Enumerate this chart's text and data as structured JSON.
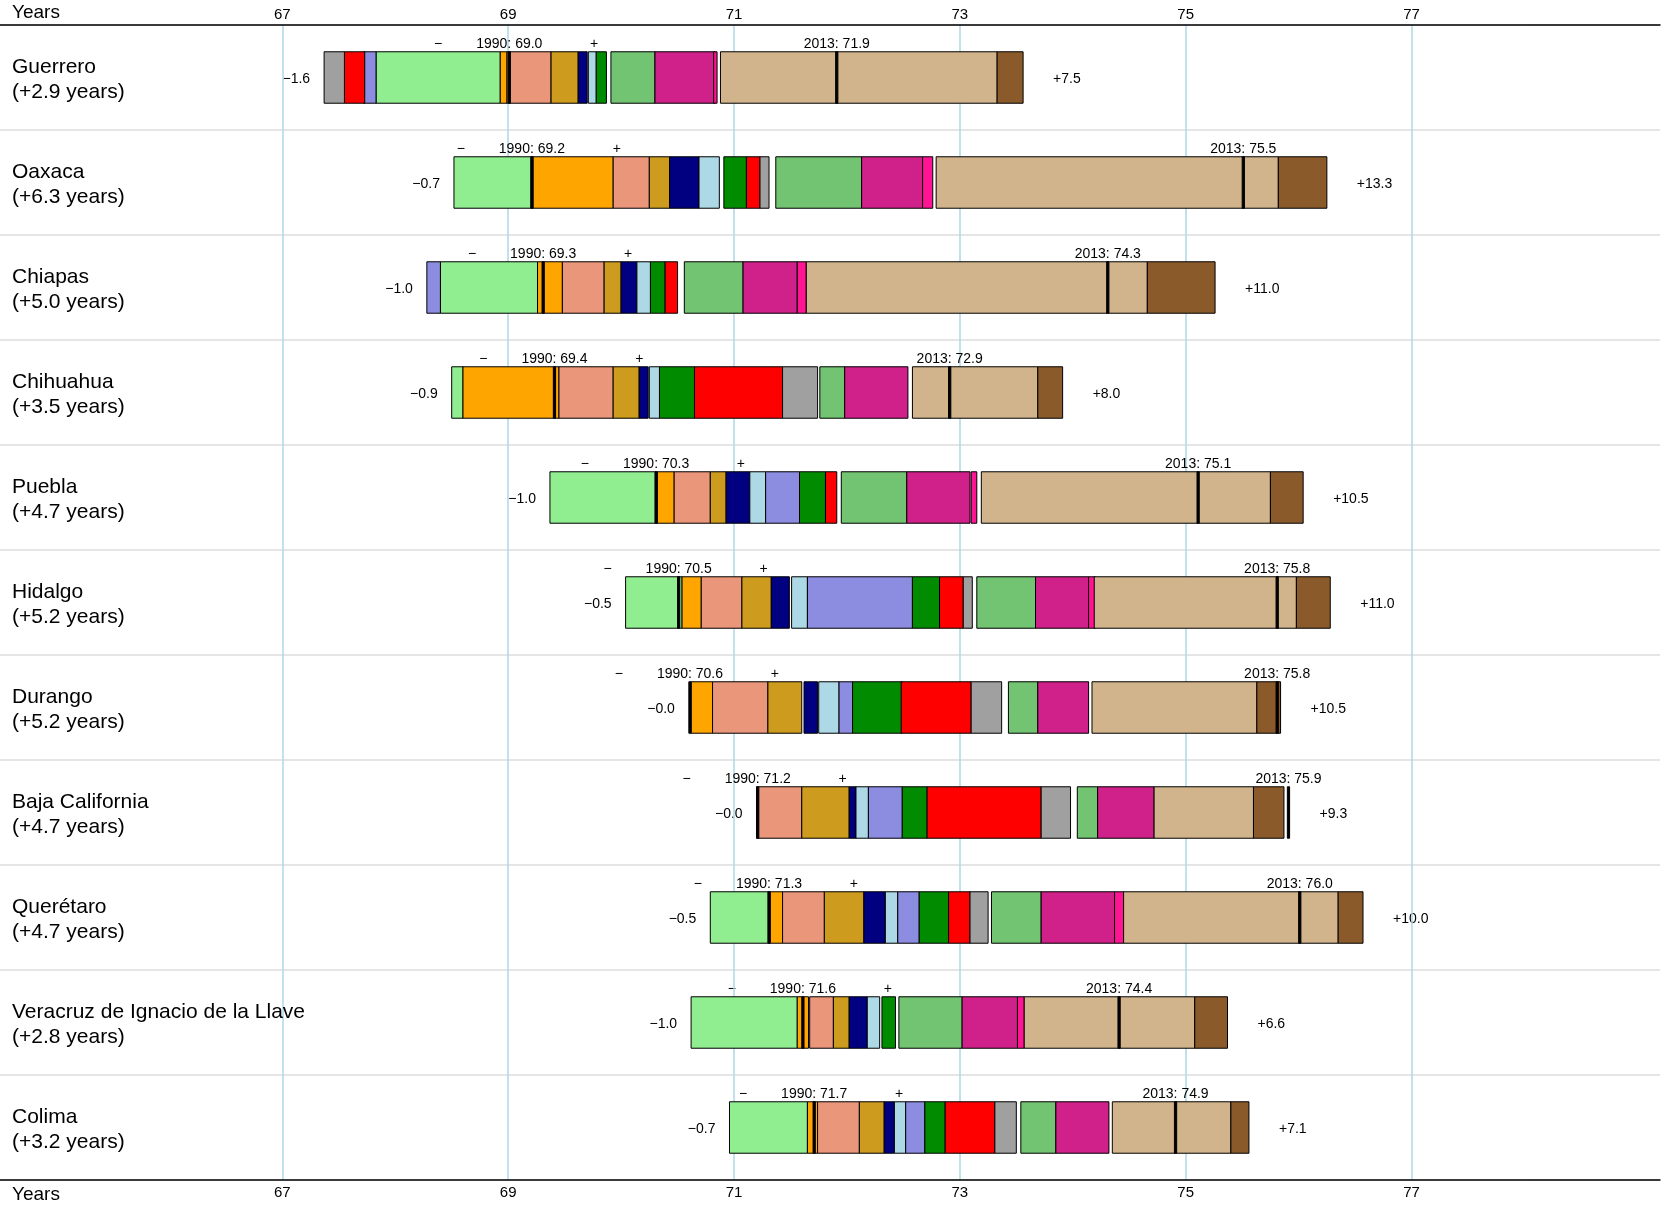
{
  "chart_data": {
    "type": "bar",
    "orientation": "horizontal",
    "xlabel": "Years",
    "x2label": "Years",
    "xlim": [
      64.5,
      79.2
    ],
    "xticks": [
      67,
      69,
      71,
      73,
      75,
      77
    ],
    "x2lim": [
      64.5,
      79.2
    ],
    "x2ticks": [
      67,
      69,
      71,
      73,
      75,
      77
    ],
    "grid": true,
    "legend": false,
    "categories": [
      "Guerrero\n(+2.9 years)",
      "Oaxaca\n(+6.3 years)",
      "Chiapas\n(+5.0 years)",
      "Chihuahua\n(+3.5 years)",
      "Puebla\n(+4.7 years)",
      "Hidalgo\n(+5.2 years)",
      "Durango\n(+5.2 years)",
      "Baja California\n(+4.7 years)",
      "Querétaro\n(+4.7 years)",
      "Veracruz de Ignacio de la Llave\n(+2.8 years)",
      "Colima\n(+3.2 years)"
    ],
    "series": [
      {
        "color": "#90ee90",
        "base": [
          67.83,
          68.52,
          68.4,
          68.5,
          69.37,
          70.04,
          null,
          null,
          70.79,
          70.62,
          70.96
        ],
        "values": [
          1.1,
          0.7,
          0.86,
          0.1,
          0.95,
          0.5,
          null,
          null,
          0.53,
          0.94,
          0.69
        ]
      },
      {
        "color": "#ffa500",
        "base": [
          68.93,
          69.22,
          69.26,
          68.6,
          70.32,
          70.54,
          70.62,
          null,
          71.32,
          71.56,
          71.65
        ],
        "values": [
          0.06,
          0.71,
          0.22,
          0.85,
          0.15,
          0.17,
          0.19,
          null,
          0.11,
          0.1,
          0.09
        ]
      },
      {
        "color": "#e9967a",
        "base": [
          68.99,
          69.93,
          69.48,
          69.45,
          70.47,
          70.71,
          70.81,
          71.2,
          71.43,
          71.67,
          71.74
        ],
        "values": [
          0.39,
          0.32,
          0.37,
          0.48,
          0.32,
          0.36,
          0.49,
          0.4,
          0.37,
          0.21,
          0.37
        ]
      },
      {
        "color": "#cd9b1d",
        "base": [
          69.38,
          70.25,
          69.85,
          69.93,
          70.79,
          71.07,
          71.3,
          71.6,
          71.8,
          71.88,
          72.11
        ],
        "values": [
          0.24,
          0.18,
          0.15,
          0.23,
          0.14,
          0.26,
          0.3,
          0.42,
          0.35,
          0.14,
          0.22
        ]
      },
      {
        "color": "#000080",
        "base": [
          69.62,
          70.43,
          70.0,
          70.16,
          70.93,
          71.33,
          71.62,
          72.02,
          72.15,
          72.02,
          72.33
        ],
        "values": [
          0.08,
          0.26,
          0.14,
          0.08,
          0.21,
          0.16,
          0.12,
          0.06,
          0.19,
          0.16,
          0.09
        ]
      },
      {
        "color": "#add8e6",
        "base": [
          69.71,
          70.69,
          70.14,
          70.25,
          71.14,
          71.51,
          71.75,
          72.08,
          72.34,
          72.18,
          72.42
        ],
        "values": [
          0.07,
          0.18,
          0.12,
          0.09,
          0.14,
          0.14,
          0.18,
          0.11,
          0.11,
          0.11,
          0.1
        ]
      },
      {
        "color": "#8c8ce0",
        "base": [
          67.72,
          null,
          68.28,
          null,
          71.28,
          71.65,
          71.93,
          72.19,
          72.45,
          null,
          72.52
        ],
        "values": [
          0.11,
          null,
          0.12,
          null,
          0.3,
          0.93,
          0.12,
          0.3,
          0.19,
          null,
          0.17
        ]
      },
      {
        "color": "#008b00",
        "base": [
          69.78,
          70.91,
          70.26,
          70.34,
          71.58,
          72.58,
          72.05,
          72.49,
          72.64,
          72.31,
          72.69
        ],
        "values": [
          0.09,
          0.2,
          0.13,
          0.31,
          0.23,
          0.24,
          0.44,
          0.22,
          0.26,
          0.12,
          0.18
        ]
      },
      {
        "color": "#ff0000",
        "base": [
          67.55,
          71.11,
          70.39,
          70.65,
          71.81,
          72.82,
          72.48,
          72.71,
          72.9,
          null,
          72.87
        ],
        "values": [
          0.18,
          0.12,
          0.11,
          0.78,
          0.1,
          0.21,
          0.62,
          1.01,
          0.19,
          null,
          0.44
        ]
      },
      {
        "color": "#a0a0a0",
        "base": [
          67.37,
          71.23,
          null,
          71.43,
          null,
          73.03,
          73.1,
          73.72,
          73.09,
          null,
          73.31
        ],
        "values": [
          0.18,
          0.08,
          null,
          0.31,
          null,
          0.08,
          0.27,
          0.26,
          0.16,
          null,
          0.19
        ]
      },
      {
        "color": "#72c472",
        "base": [
          69.91,
          71.37,
          70.56,
          71.76,
          71.95,
          73.15,
          73.43,
          74.04,
          73.28,
          72.46,
          73.54
        ],
        "values": [
          0.39,
          0.76,
          0.52,
          0.22,
          0.58,
          0.52,
          0.26,
          0.18,
          0.44,
          0.56,
          0.31
        ]
      },
      {
        "color": "#d0208a",
        "base": [
          70.3,
          72.13,
          71.08,
          71.98,
          72.53,
          73.67,
          73.69,
          74.22,
          73.72,
          73.02,
          73.85
        ],
        "values": [
          0.53,
          0.54,
          0.48,
          0.56,
          0.56,
          0.47,
          0.45,
          0.5,
          0.65,
          0.49,
          0.47
        ]
      },
      {
        "color": "#ff1493",
        "base": [
          70.82,
          72.67,
          71.56,
          null,
          73.1,
          74.14,
          null,
          null,
          74.37,
          73.51,
          null
        ],
        "values": [
          0.03,
          0.09,
          0.08,
          null,
          0.05,
          0.06,
          null,
          null,
          0.08,
          0.06,
          null
        ]
      },
      {
        "color": "#d2b48c",
        "base": [
          70.88,
          72.79,
          71.64,
          72.58,
          73.19,
          74.19,
          74.17,
          74.72,
          74.45,
          73.57,
          74.35
        ],
        "values": [
          2.45,
          3.03,
          3.02,
          1.11,
          2.56,
          1.79,
          1.46,
          0.88,
          1.9,
          1.51,
          1.05
        ]
      },
      {
        "color": "#8b5a2b",
        "base": [
          73.33,
          75.82,
          74.66,
          73.69,
          75.75,
          75.98,
          75.63,
          75.6,
          76.35,
          75.08,
          75.4
        ],
        "values": [
          0.23,
          0.43,
          0.6,
          0.22,
          0.29,
          0.3,
          0.21,
          0.27,
          0.22,
          0.29,
          0.16
        ]
      },
      {
        "color": "#000000",
        "base": [
          69.0,
          69.2,
          69.3,
          69.4,
          70.3,
          70.5,
          70.6,
          71.2,
          71.3,
          71.6,
          71.7
        ],
        "values": [
          0.02,
          0.02,
          0.02,
          0.02,
          0.02,
          0.02,
          0.02,
          0.02,
          0.02,
          0.02,
          0.02
        ],
        "value_labels": [
          "1990: 69.0",
          "1990: 69.2",
          "1990: 69.3",
          "1990: 69.4",
          "1990: 70.3",
          "1990: 70.5",
          "1990: 70.6",
          "1990: 71.2",
          "1990: 71.3",
          "1990: 71.6",
          "1990: 71.7"
        ]
      },
      {
        "color": "#000000",
        "base": [
          71.9,
          75.5,
          74.3,
          72.9,
          75.1,
          75.8,
          75.8,
          75.9,
          76.0,
          74.4,
          74.9
        ],
        "values": [
          0.02,
          0.02,
          0.02,
          0.02,
          0.02,
          0.02,
          0.02,
          0.02,
          0.02,
          0.02,
          0.02
        ],
        "value_labels": [
          "2013: 71.9",
          "2013: 75.5",
          "2013: 74.3",
          "2013: 72.9",
          "2013: 75.1",
          "2013: 75.8",
          "2013: 75.8",
          "2013: 75.9",
          "2013: 76.0",
          "2013: 74.4",
          "2013: 74.9"
        ]
      }
    ],
    "annotations": [
      "−",
      "+",
      "−1.6",
      "+7.5",
      "−",
      "+",
      "−0.7",
      "+13.3",
      "−",
      "+",
      "−1.0",
      "+11.0",
      "−",
      "+",
      "−0.9",
      "+8.0",
      "−",
      "+",
      "−1.0",
      "+10.5",
      "−",
      "+",
      "−0.5",
      "+11.0",
      "−",
      "+",
      "−0.0",
      "+10.5",
      "−",
      "+",
      "−0.0",
      "+9.3",
      "−",
      "+",
      "−0.5",
      "+10.0",
      "−",
      "+",
      "−1.0",
      "+6.6",
      "−",
      "+",
      "−0.7",
      "+7.1"
    ]
  }
}
